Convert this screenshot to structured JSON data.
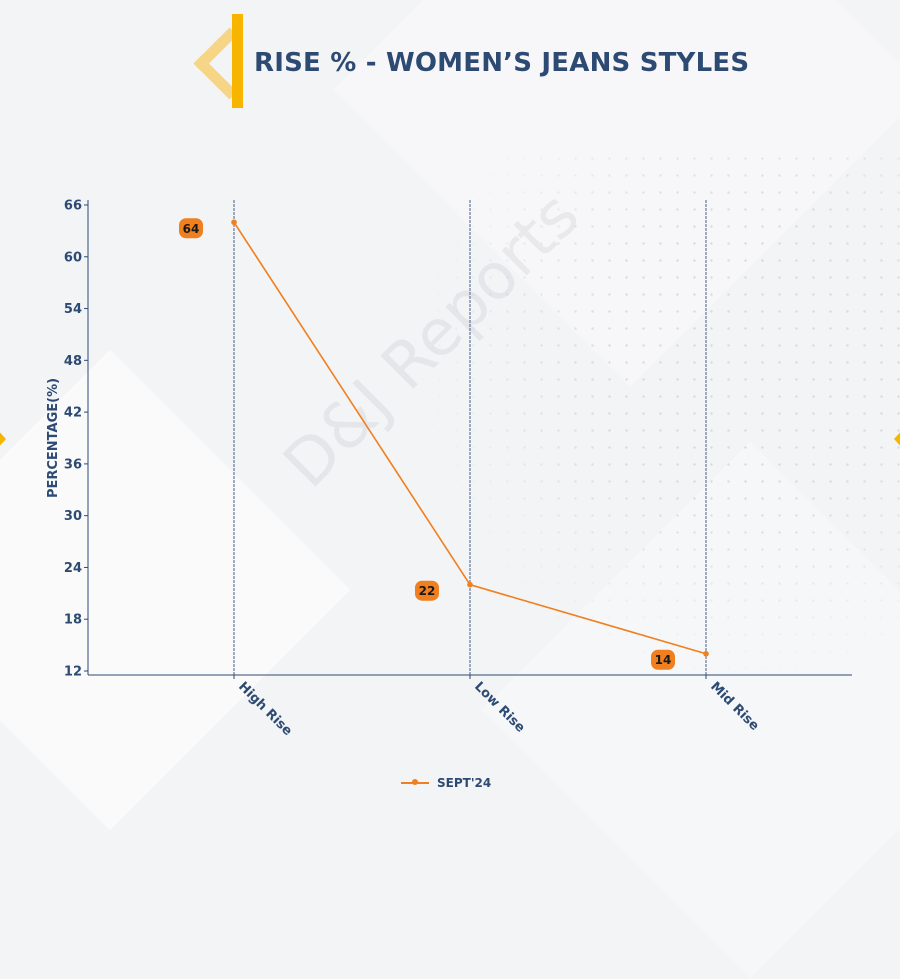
{
  "title": "RISE % - WOMEN’S JEANS STYLES",
  "watermark": "D&J Reports",
  "colors": {
    "series": "#f07f1f",
    "axis": "#2d4a73",
    "accent": "#f7b500",
    "label_bg": "#f07f1f"
  },
  "chart_data": {
    "type": "line",
    "categories": [
      "High Rise",
      "Low Rise",
      "Mid Rise"
    ],
    "series": [
      {
        "name": "SEPT'24",
        "values": [
          64,
          22,
          14
        ]
      }
    ],
    "ylabel": "PERCENTAGE(%)",
    "xlabel": "",
    "ylim": [
      12,
      66
    ],
    "yticks": [
      12,
      18,
      24,
      30,
      36,
      42,
      48,
      54,
      60,
      66
    ],
    "grid": "vertical",
    "legend": "bottom-center"
  }
}
